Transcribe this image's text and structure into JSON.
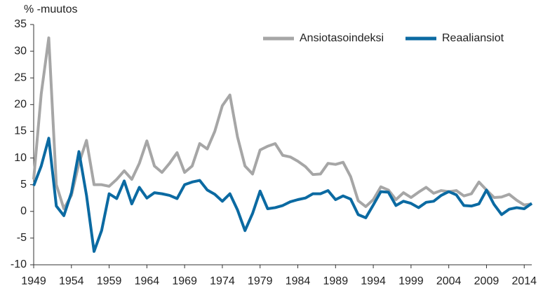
{
  "chart_data": {
    "type": "line",
    "ylabel": "% -muutos",
    "x": [
      1949,
      1950,
      1951,
      1952,
      1953,
      1954,
      1955,
      1956,
      1957,
      1958,
      1959,
      1960,
      1961,
      1962,
      1963,
      1964,
      1965,
      1966,
      1967,
      1968,
      1969,
      1970,
      1971,
      1972,
      1973,
      1974,
      1975,
      1976,
      1977,
      1978,
      1979,
      1980,
      1981,
      1982,
      1983,
      1984,
      1985,
      1986,
      1987,
      1988,
      1989,
      1990,
      1991,
      1992,
      1993,
      1994,
      1995,
      1996,
      1997,
      1998,
      1999,
      2000,
      2001,
      2002,
      2003,
      2004,
      2005,
      2006,
      2007,
      2008,
      2009,
      2010,
      2011,
      2012,
      2013,
      2014,
      2015
    ],
    "series": [
      {
        "name": "Ansiotasoindeksi",
        "color": "#a6a6a6",
        "values": [
          6,
          22,
          32.5,
          5,
          0.5,
          3,
          9,
          13.3,
          5,
          5,
          4.7,
          6,
          7.6,
          6,
          9,
          13.2,
          8.5,
          7.3,
          9,
          11,
          7.3,
          8.5,
          12.7,
          11.7,
          15,
          19.8,
          21.8,
          14,
          8.5,
          7,
          11.5,
          12.2,
          12.7,
          10.5,
          10.2,
          9.4,
          8.4,
          6.9,
          7,
          9,
          8.8,
          9.2,
          6.5,
          2,
          0.9,
          2.2,
          4.6,
          4,
          2.2,
          3.5,
          2.6,
          3.6,
          4.5,
          3.4,
          3.9,
          3.7,
          3.9,
          2.9,
          3.3,
          5.5,
          4,
          2.6,
          2.7,
          3.2,
          2.1,
          1.2,
          1.4
        ]
      },
      {
        "name": "Reaaliansiot",
        "color": "#0b6aa2",
        "values": [
          4.8,
          8.5,
          13.7,
          1,
          -0.8,
          3.5,
          11.2,
          3,
          -7.5,
          -3.6,
          3.3,
          2.4,
          5.7,
          1.4,
          4.5,
          2.5,
          3.5,
          3.3,
          3,
          2.4,
          5,
          5.5,
          5.8,
          4,
          3.2,
          1.9,
          3.3,
          0.3,
          -3.6,
          -0.4,
          3.8,
          0.5,
          0.7,
          1.1,
          1.8,
          2.2,
          2.5,
          3.3,
          3.3,
          3.9,
          2.2,
          2.9,
          2.3,
          -0.6,
          -1.2,
          1.2,
          3.7,
          3.6,
          1.1,
          1.9,
          1.5,
          0.7,
          1.7,
          1.9,
          3,
          3.7,
          3.1,
          1.1,
          1,
          1.4,
          4,
          1.3,
          -0.6,
          0.4,
          0.7,
          0.5,
          1.5
        ]
      }
    ],
    "xlim": [
      1949,
      2015
    ],
    "xticks": [
      1949,
      1954,
      1959,
      1964,
      1969,
      1974,
      1979,
      1984,
      1989,
      1994,
      1999,
      2004,
      2009,
      2014
    ],
    "ylim": [
      -10,
      35
    ],
    "yticks": [
      -10,
      -5,
      0,
      5,
      10,
      15,
      20,
      25,
      30,
      35
    ],
    "legend": "top-right"
  }
}
